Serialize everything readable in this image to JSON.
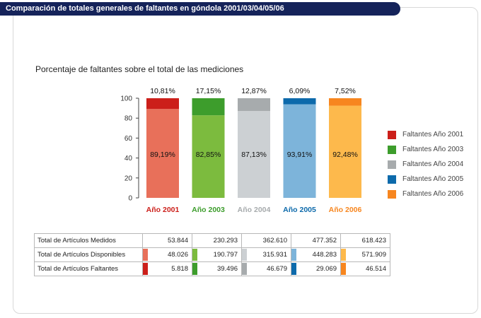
{
  "header": {
    "title": "Comparación de totales generales de faltantes en góndola 2001/03/04/05/06"
  },
  "chart_data": {
    "type": "bar",
    "stacked": true,
    "title": "Porcentaje de faltantes sobre el total de las mediciones",
    "categories": [
      "Año 2001",
      "Año 2003",
      "Año 2004",
      "Año 2005",
      "Año 2006"
    ],
    "category_colors": [
      "#cc1f1a",
      "#3d9d2c",
      "#a7abad",
      "#0d6aab",
      "#f7861f"
    ],
    "yticks": [
      "0",
      "20",
      "40",
      "60",
      "80",
      "100"
    ],
    "ylim": [
      0,
      100
    ],
    "series": [
      {
        "name": "Disponibles",
        "values": [
          89.19,
          82.85,
          87.13,
          93.91,
          92.48
        ],
        "labels": [
          "89,19%",
          "82,85%",
          "87,13%",
          "93,91%",
          "92,48%"
        ],
        "colors": [
          "#e8705a",
          "#7cbb3e",
          "#ccd0d3",
          "#7db4da",
          "#fdb94c"
        ]
      },
      {
        "name": "Faltantes",
        "values": [
          10.81,
          17.15,
          12.87,
          6.09,
          7.52
        ],
        "labels": [
          "10,81%",
          "17,15%",
          "12,87%",
          "6,09%",
          "7,52%"
        ],
        "colors": [
          "#cc1f1a",
          "#3d9d2c",
          "#a7abad",
          "#0d6aab",
          "#f7861f"
        ]
      }
    ],
    "legend": {
      "placement": "right",
      "items": [
        {
          "label": "Faltantes Año 2001",
          "color": "#cc1f1a"
        },
        {
          "label": "Faltantes Año 2003",
          "color": "#3d9d2c"
        },
        {
          "label": "Faltantes Año 2004",
          "color": "#a7abad"
        },
        {
          "label": "Faltantes Año 2005",
          "color": "#0d6aab"
        },
        {
          "label": "Faltantes Año 2006",
          "color": "#f7861f"
        }
      ]
    }
  },
  "table": {
    "rows": [
      {
        "label": "Total de Artículos Medidos",
        "values": [
          "53.844",
          "230.293",
          "362.610",
          "477.352",
          "618.423"
        ],
        "swatches": null
      },
      {
        "label": "Total de Artículos Disponibles",
        "values": [
          "48.026",
          "190.797",
          "315.931",
          "448.283",
          "571.909"
        ],
        "swatches": [
          "#e8705a",
          "#7cbb3e",
          "#ccd0d3",
          "#7db4da",
          "#fdb94c"
        ]
      },
      {
        "label": "Total de Artículos Faltantes",
        "values": [
          "5.818",
          "39.496",
          "46.679",
          "29.069",
          "46.514"
        ],
        "swatches": [
          "#cc1f1a",
          "#3d9d2c",
          "#a7abad",
          "#0d6aab",
          "#f7861f"
        ]
      }
    ]
  }
}
